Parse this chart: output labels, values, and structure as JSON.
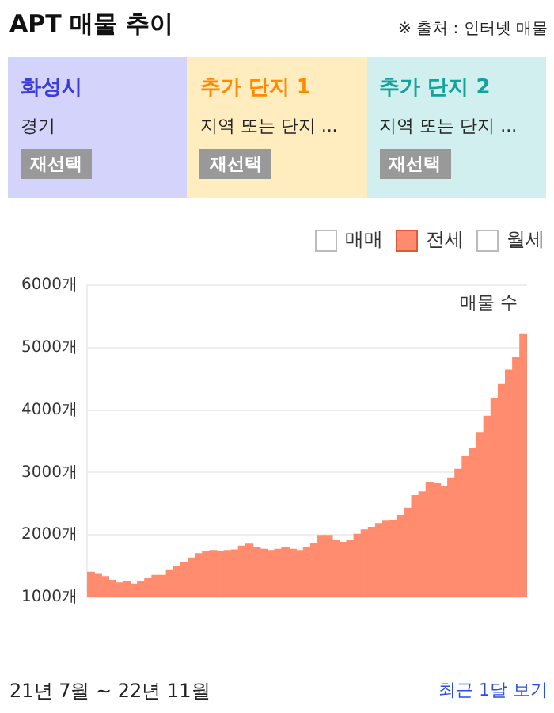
{
  "chart_data": {
    "type": "bar",
    "title": "APT 매물 추이",
    "ylabel": "매물 수",
    "categories": [
      null,
      null,
      null,
      null,
      null,
      null,
      null,
      null,
      null,
      null,
      null,
      null,
      null,
      null,
      null,
      null,
      null,
      null,
      null,
      null,
      null,
      null,
      null,
      null,
      null,
      null,
      null,
      null,
      null,
      null,
      null,
      null,
      null,
      null,
      null,
      null,
      null,
      null,
      null,
      null,
      null,
      null,
      null,
      null,
      null,
      null,
      null,
      null,
      null,
      null,
      null,
      null,
      null,
      null,
      null,
      null,
      null,
      null,
      null,
      null,
      null
    ],
    "series": [
      {
        "name": "전세",
        "color": "#ff8c6e",
        "values": [
          1400,
          1380,
          1330,
          1270,
          1230,
          1250,
          1210,
          1250,
          1310,
          1350,
          1350,
          1440,
          1500,
          1550,
          1630,
          1700,
          1740,
          1750,
          1740,
          1750,
          1760,
          1820,
          1850,
          1800,
          1770,
          1750,
          1770,
          1790,
          1770,
          1750,
          1800,
          1860,
          1990,
          1990,
          1910,
          1880,
          1910,
          2010,
          2080,
          2120,
          2180,
          2220,
          2230,
          2310,
          2430,
          2630,
          2690,
          2840,
          2820,
          2770,
          2910,
          3050,
          3260,
          3390,
          3640,
          3900,
          4190,
          4410,
          4640,
          4840,
          5220
        ]
      }
    ],
    "ylim": [
      1000,
      6000
    ],
    "yticks": [
      {
        "value": 1000,
        "label": "1000개"
      },
      {
        "value": 2000,
        "label": "2000개"
      },
      {
        "value": 3000,
        "label": "3000개"
      },
      {
        "value": 4000,
        "label": "4000개"
      },
      {
        "value": 5000,
        "label": "5000개"
      },
      {
        "value": 6000,
        "label": "6000개"
      }
    ],
    "grid": "y",
    "legend": "top right",
    "annotations": [
      "※ 출처 : 인터넷 매물",
      "화성시",
      "경기",
      "재선택",
      "추가 단지 1",
      "지역 또는 단지 ...",
      "재선택",
      "추가 단지 2",
      "지역 또는 단지 ...",
      "재선택",
      "매매",
      "월세",
      "21년 7월 ~ 22년 11월",
      "최근 1달 보기"
    ]
  }
}
